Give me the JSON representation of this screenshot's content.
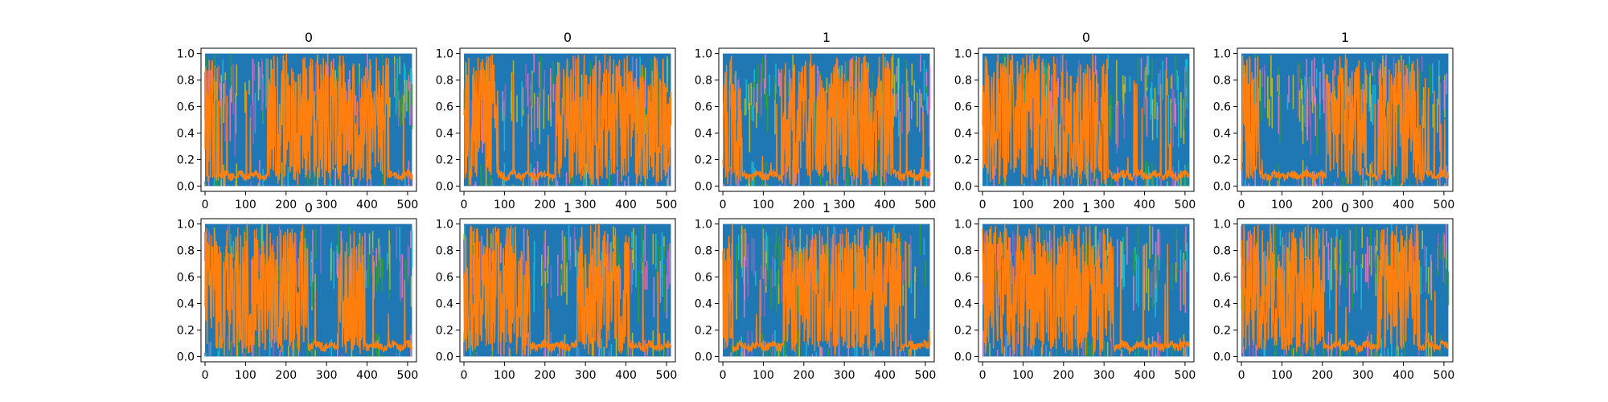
{
  "chart_data": {
    "type": "line",
    "layout": "2x5 small multiples",
    "shared": {
      "xlim": [
        -10,
        522
      ],
      "ylim": [
        -0.04,
        1.04
      ],
      "xticks": [
        0,
        100,
        200,
        300,
        400,
        500
      ],
      "yticks": [
        0.0,
        0.2,
        0.4,
        0.6,
        0.8,
        1.0
      ],
      "xtick_labels": [
        "0",
        "100",
        "200",
        "300",
        "400",
        "500"
      ],
      "ytick_labels": [
        "0.0",
        "0.2",
        "0.4",
        "0.6",
        "0.8",
        "1.0"
      ],
      "n_points": 512,
      "grid": false,
      "legend": "none",
      "colors": {
        "blue": "#1f77b4",
        "orange": "#ff7f0e",
        "cyan": "#17becf",
        "olive": "#bcbd22",
        "green": "#2ca02c",
        "pink": "#e377c2",
        "purple": "#9467bd"
      }
    },
    "panels": [
      {
        "title": "0",
        "orange_high_ranges": [
          [
            0,
            25
          ],
          [
            155,
            455
          ]
        ]
      },
      {
        "title": "0",
        "orange_high_ranges": [
          [
            0,
            85
          ],
          [
            225,
            512
          ]
        ]
      },
      {
        "title": "1",
        "orange_high_ranges": [
          [
            0,
            50
          ],
          [
            145,
            420
          ]
        ]
      },
      {
        "title": "0",
        "orange_high_ranges": [
          [
            0,
            310
          ]
        ]
      },
      {
        "title": "1",
        "orange_high_ranges": [
          [
            0,
            45
          ],
          [
            210,
            310
          ],
          [
            340,
            450
          ]
        ]
      },
      {
        "title": "0",
        "orange_high_ranges": [
          [
            0,
            255
          ],
          [
            330,
            395
          ]
        ]
      },
      {
        "title": "1",
        "orange_high_ranges": [
          [
            0,
            165
          ],
          [
            280,
            410
          ]
        ]
      },
      {
        "title": "1",
        "orange_high_ranges": [
          [
            0,
            25
          ],
          [
            150,
            440
          ]
        ]
      },
      {
        "title": "1",
        "orange_high_ranges": [
          [
            0,
            325
          ]
        ]
      },
      {
        "title": "0",
        "orange_high_ranges": [
          [
            0,
            205
          ],
          [
            340,
            440
          ]
        ]
      }
    ]
  }
}
